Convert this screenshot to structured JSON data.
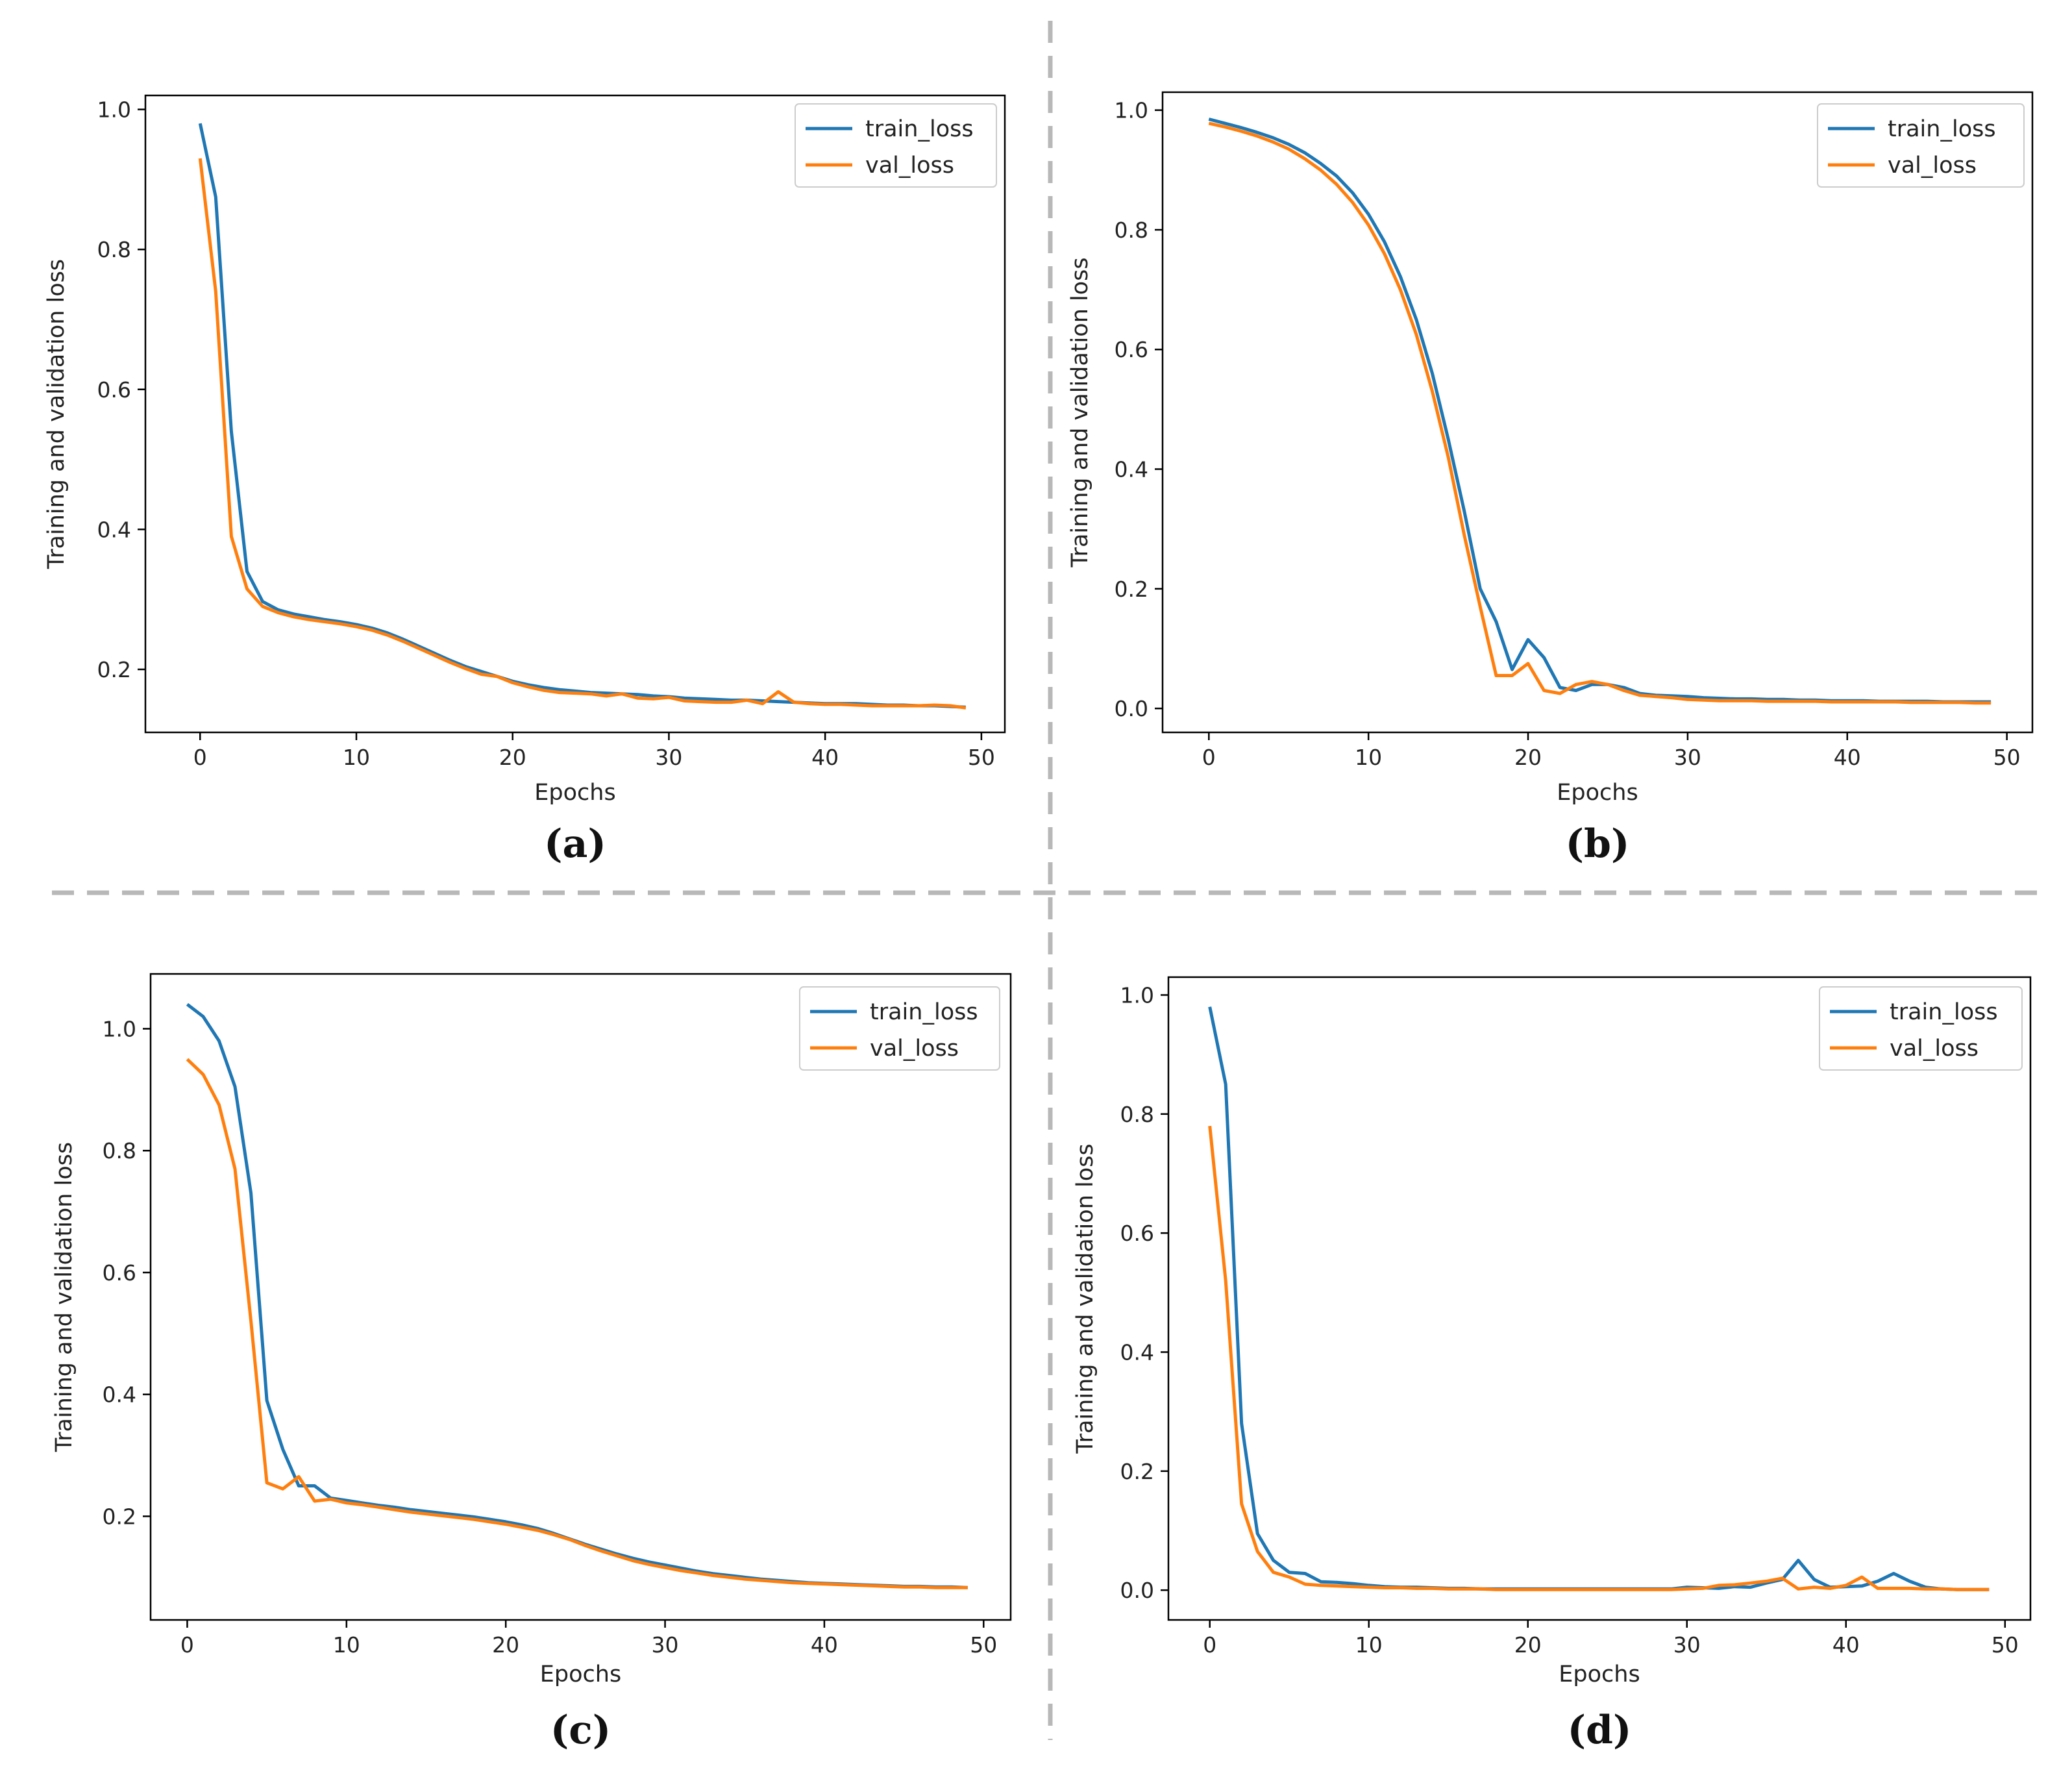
{
  "colors": {
    "train": "#1f77b4",
    "val": "#ff7f0e",
    "divider": "#b8b8b8"
  },
  "chart_data": [
    {
      "type": "line",
      "caption": "(a)",
      "xlabel": "Epochs",
      "ylabel": "Training and validation loss",
      "xlim": [
        -3.5,
        51.5
      ],
      "ylim": [
        0.11,
        1.02
      ],
      "xticks": [
        0,
        10,
        20,
        30,
        40,
        50
      ],
      "xtick_labels": [
        "0",
        "10",
        "20",
        "30",
        "40",
        "50"
      ],
      "yticks": [
        0.2,
        0.4,
        0.6,
        0.8,
        1.0
      ],
      "ytick_labels": [
        "0.2",
        "0.4",
        "0.6",
        "0.8",
        "1.0"
      ],
      "legend_position": "top-right",
      "series": [
        {
          "name": "train_loss",
          "color": "#1f77b4",
          "values": [
            0.98,
            0.875,
            0.54,
            0.34,
            0.297,
            0.285,
            0.279,
            0.275,
            0.271,
            0.268,
            0.264,
            0.259,
            0.252,
            0.243,
            0.233,
            0.223,
            0.213,
            0.204,
            0.197,
            0.19,
            0.183,
            0.178,
            0.174,
            0.171,
            0.169,
            0.167,
            0.166,
            0.165,
            0.164,
            0.162,
            0.161,
            0.159,
            0.158,
            0.157,
            0.156,
            0.156,
            0.155,
            0.154,
            0.153,
            0.152,
            0.151,
            0.151,
            0.151,
            0.15,
            0.149,
            0.149,
            0.148,
            0.148,
            0.147,
            0.146
          ]
        },
        {
          "name": "val_loss",
          "color": "#ff7f0e",
          "values": [
            0.93,
            0.74,
            0.39,
            0.315,
            0.29,
            0.281,
            0.275,
            0.271,
            0.268,
            0.265,
            0.261,
            0.256,
            0.249,
            0.24,
            0.23,
            0.22,
            0.21,
            0.201,
            0.193,
            0.19,
            0.181,
            0.175,
            0.17,
            0.167,
            0.166,
            0.165,
            0.162,
            0.165,
            0.159,
            0.158,
            0.16,
            0.155,
            0.154,
            0.153,
            0.153,
            0.156,
            0.151,
            0.168,
            0.153,
            0.151,
            0.15,
            0.15,
            0.149,
            0.148,
            0.148,
            0.148,
            0.148,
            0.149,
            0.148,
            0.145
          ]
        }
      ]
    },
    {
      "type": "line",
      "caption": "(b)",
      "xlabel": "Epochs",
      "ylabel": "Training and validation loss",
      "xlim": [
        -2.9,
        51.6
      ],
      "ylim": [
        -0.04,
        1.03
      ],
      "xticks": [
        0,
        10,
        20,
        30,
        40,
        50
      ],
      "xtick_labels": [
        "0",
        "10",
        "20",
        "30",
        "40",
        "50"
      ],
      "yticks": [
        0.0,
        0.2,
        0.4,
        0.6,
        0.8,
        1.0
      ],
      "ytick_labels": [
        "0.0",
        "0.2",
        "0.4",
        "0.6",
        "0.8",
        "1.0"
      ],
      "legend_position": "top-right",
      "series": [
        {
          "name": "train_loss",
          "color": "#1f77b4",
          "values": [
            0.985,
            0.978,
            0.971,
            0.963,
            0.954,
            0.943,
            0.929,
            0.911,
            0.89,
            0.862,
            0.826,
            0.78,
            0.722,
            0.65,
            0.56,
            0.45,
            0.33,
            0.2,
            0.145,
            0.065,
            0.115,
            0.085,
            0.035,
            0.03,
            0.04,
            0.04,
            0.035,
            0.025,
            0.022,
            0.021,
            0.02,
            0.018,
            0.017,
            0.016,
            0.016,
            0.015,
            0.015,
            0.014,
            0.014,
            0.013,
            0.013,
            0.013,
            0.012,
            0.012,
            0.012,
            0.012,
            0.011,
            0.011,
            0.011,
            0.011
          ]
        },
        {
          "name": "val_loss",
          "color": "#ff7f0e",
          "values": [
            0.978,
            0.972,
            0.965,
            0.957,
            0.947,
            0.935,
            0.919,
            0.9,
            0.876,
            0.846,
            0.808,
            0.76,
            0.7,
            0.625,
            0.53,
            0.42,
            0.29,
            0.17,
            0.055,
            0.055,
            0.075,
            0.03,
            0.025,
            0.04,
            0.045,
            0.04,
            0.03,
            0.022,
            0.02,
            0.018,
            0.015,
            0.014,
            0.013,
            0.013,
            0.013,
            0.012,
            0.012,
            0.012,
            0.012,
            0.011,
            0.011,
            0.011,
            0.011,
            0.011,
            0.01,
            0.01,
            0.01,
            0.01,
            0.009,
            0.009
          ]
        }
      ]
    },
    {
      "type": "line",
      "caption": "(c)",
      "xlabel": "Epochs",
      "ylabel": "Training and validation loss",
      "xlim": [
        -2.3,
        51.7
      ],
      "ylim": [
        0.03,
        1.09
      ],
      "xticks": [
        0,
        10,
        20,
        30,
        40,
        50
      ],
      "xtick_labels": [
        "0",
        "10",
        "20",
        "30",
        "40",
        "50"
      ],
      "yticks": [
        0.2,
        0.4,
        0.6,
        0.8,
        1.0
      ],
      "ytick_labels": [
        "0.2",
        "0.4",
        "0.6",
        "0.8",
        "1.0"
      ],
      "legend_position": "top-right",
      "series": [
        {
          "name": "train_loss",
          "color": "#1f77b4",
          "values": [
            1.04,
            1.02,
            0.98,
            0.905,
            0.73,
            0.39,
            0.31,
            0.25,
            0.25,
            0.23,
            0.226,
            0.222,
            0.218,
            0.215,
            0.211,
            0.208,
            0.205,
            0.202,
            0.199,
            0.195,
            0.191,
            0.186,
            0.18,
            0.172,
            0.163,
            0.154,
            0.146,
            0.138,
            0.131,
            0.125,
            0.12,
            0.115,
            0.11,
            0.106,
            0.103,
            0.1,
            0.097,
            0.095,
            0.093,
            0.091,
            0.09,
            0.089,
            0.088,
            0.087,
            0.086,
            0.085,
            0.085,
            0.084,
            0.084,
            0.083
          ]
        },
        {
          "name": "val_loss",
          "color": "#ff7f0e",
          "values": [
            0.95,
            0.925,
            0.875,
            0.77,
            0.52,
            0.255,
            0.245,
            0.265,
            0.225,
            0.228,
            0.222,
            0.219,
            0.215,
            0.211,
            0.207,
            0.204,
            0.201,
            0.198,
            0.195,
            0.191,
            0.187,
            0.182,
            0.177,
            0.17,
            0.162,
            0.152,
            0.143,
            0.135,
            0.127,
            0.121,
            0.116,
            0.111,
            0.107,
            0.103,
            0.1,
            0.097,
            0.095,
            0.093,
            0.091,
            0.09,
            0.089,
            0.088,
            0.087,
            0.086,
            0.085,
            0.084,
            0.084,
            0.083,
            0.083,
            0.083
          ]
        }
      ]
    },
    {
      "type": "line",
      "caption": "(d)",
      "xlabel": "Epochs",
      "ylabel": "Training and validation loss",
      "xlim": [
        -2.6,
        51.6
      ],
      "ylim": [
        -0.05,
        1.03
      ],
      "xticks": [
        0,
        10,
        20,
        30,
        40,
        50
      ],
      "xtick_labels": [
        "0",
        "10",
        "20",
        "30",
        "40",
        "50"
      ],
      "yticks": [
        0.0,
        0.2,
        0.4,
        0.6,
        0.8,
        1.0
      ],
      "ytick_labels": [
        "0.0",
        "0.2",
        "0.4",
        "0.6",
        "0.8",
        "1.0"
      ],
      "legend_position": "top-right",
      "series": [
        {
          "name": "train_loss",
          "color": "#1f77b4",
          "values": [
            0.98,
            0.85,
            0.28,
            0.095,
            0.05,
            0.03,
            0.028,
            0.014,
            0.013,
            0.011,
            0.008,
            0.006,
            0.005,
            0.005,
            0.004,
            0.003,
            0.003,
            0.002,
            0.002,
            0.002,
            0.002,
            0.002,
            0.002,
            0.002,
            0.002,
            0.002,
            0.002,
            0.002,
            0.002,
            0.002,
            0.005,
            0.004,
            0.003,
            0.006,
            0.005,
            0.012,
            0.018,
            0.05,
            0.018,
            0.005,
            0.006,
            0.007,
            0.015,
            0.028,
            0.015,
            0.005,
            0.002,
            0.001,
            0.001,
            0.001
          ]
        },
        {
          "name": "val_loss",
          "color": "#ff7f0e",
          "values": [
            0.78,
            0.52,
            0.145,
            0.065,
            0.03,
            0.022,
            0.01,
            0.008,
            0.007,
            0.006,
            0.005,
            0.004,
            0.004,
            0.003,
            0.003,
            0.002,
            0.002,
            0.002,
            0.001,
            0.001,
            0.001,
            0.001,
            0.001,
            0.001,
            0.001,
            0.001,
            0.001,
            0.001,
            0.001,
            0.001,
            0.002,
            0.003,
            0.008,
            0.009,
            0.012,
            0.015,
            0.02,
            0.002,
            0.005,
            0.003,
            0.008,
            0.022,
            0.003,
            0.003,
            0.003,
            0.002,
            0.002,
            0.001,
            0.001,
            0.001
          ]
        }
      ]
    }
  ]
}
